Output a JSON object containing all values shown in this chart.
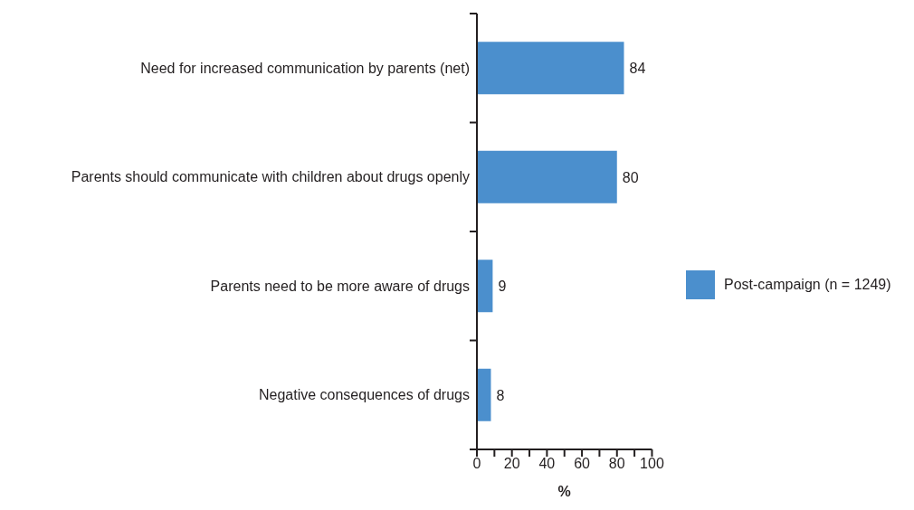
{
  "chart_data": {
    "type": "bar",
    "orientation": "horizontal",
    "categories": [
      "Need for increased communication by parents (net)",
      "Parents should communicate with children about drugs openly",
      "Parents need to be more aware of drugs",
      "Negative consequences of drugs"
    ],
    "series": [
      {
        "name": "Post-campaign (n = 1249)",
        "color": "#4b8fcd",
        "values": [
          84,
          80,
          9,
          8
        ]
      }
    ],
    "xlabel": "%",
    "xlim": [
      0,
      100
    ],
    "xticks": [
      0,
      {
        "value": 10,
        "label": null
      },
      20,
      {
        "value": 30,
        "label": null
      },
      40,
      {
        "value": 50,
        "label": null
      },
      60,
      {
        "value": 70,
        "label": null
      },
      80,
      {
        "value": 90,
        "label": null
      },
      100
    ],
    "data_labels": true,
    "legend": "right"
  }
}
